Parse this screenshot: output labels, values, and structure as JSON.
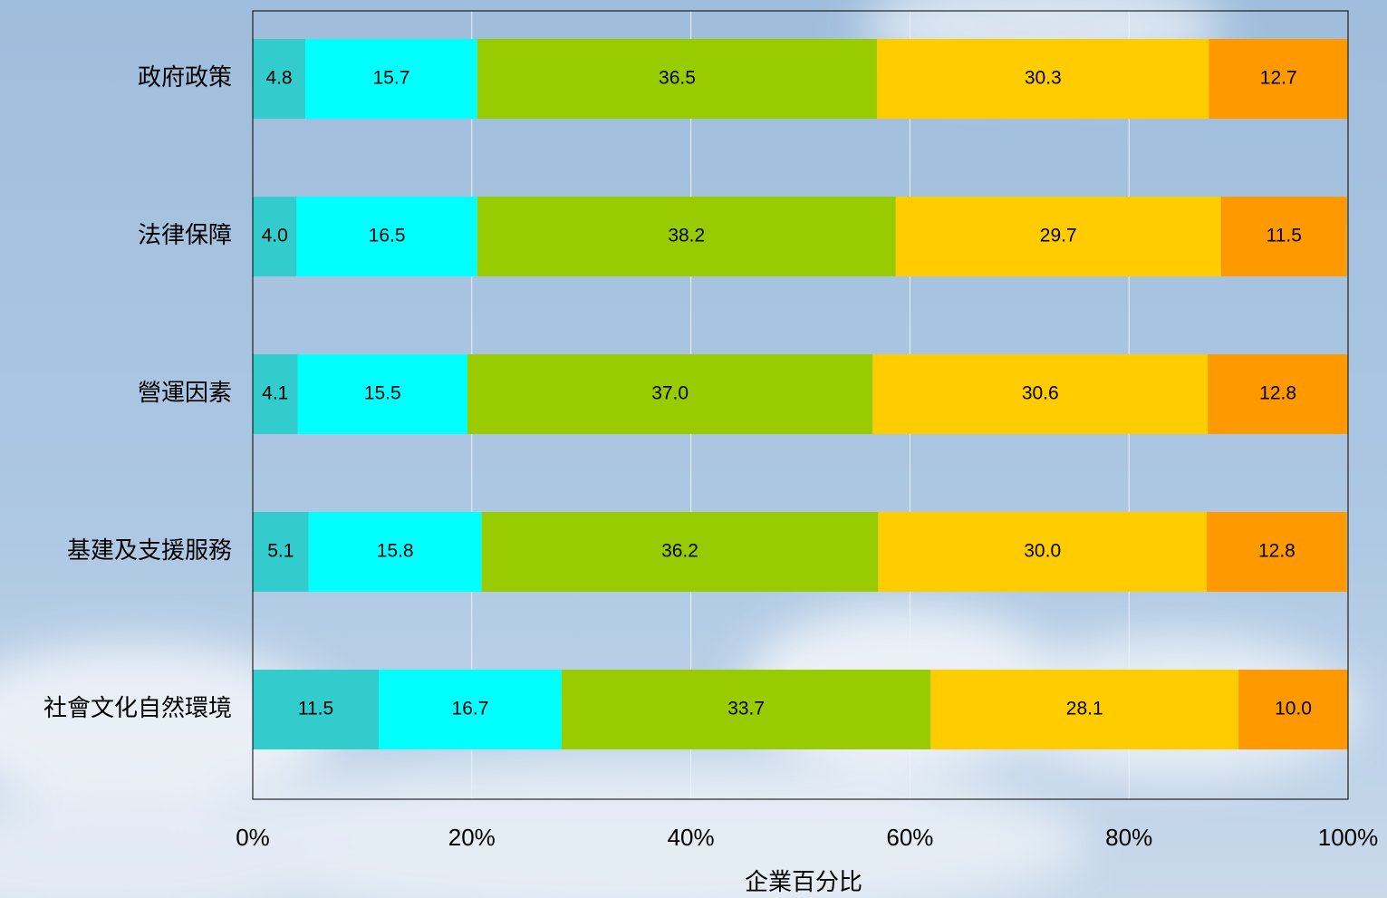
{
  "chart_data": {
    "type": "stacked-barh",
    "xlabel": "企業百分比",
    "categories": [
      "政府政策",
      "法律保障",
      "營運因素",
      "基建及支援服務",
      "社會文化自然環境"
    ],
    "series": [
      {
        "color": "#33cccc",
        "values": [
          4.8,
          4.0,
          4.1,
          5.1,
          11.5
        ],
        "value_labels": [
          "4.8",
          "4.0",
          "4.1",
          "5.1",
          "11.5"
        ]
      },
      {
        "color": "#00ffff",
        "values": [
          15.7,
          16.5,
          15.5,
          15.8,
          16.7
        ],
        "value_labels": [
          "15.7",
          "16.5",
          "15.5",
          "15.8",
          "16.7"
        ]
      },
      {
        "color": "#99cc00",
        "values": [
          36.5,
          38.2,
          37.0,
          36.2,
          33.7
        ],
        "value_labels": [
          "36.5",
          "38.2",
          "37.0",
          "36.2",
          "33.7"
        ]
      },
      {
        "color": "#ffcc00",
        "values": [
          30.3,
          29.7,
          30.6,
          30.0,
          28.1
        ],
        "value_labels": [
          "30.3",
          "29.7",
          "30.6",
          "30.0",
          "28.1"
        ]
      },
      {
        "color": "#ff9900",
        "values": [
          12.7,
          11.5,
          12.8,
          12.8,
          10.0
        ],
        "value_labels": [
          "12.7",
          "11.5",
          "12.8",
          "12.8",
          "10.0"
        ]
      }
    ],
    "xlim": [
      0,
      100
    ],
    "xticks": [
      {
        "value": 0,
        "label": "0%"
      },
      {
        "value": 20,
        "label": "20%"
      },
      {
        "value": 40,
        "label": "40%"
      },
      {
        "value": 60,
        "label": "60%"
      },
      {
        "value": 80,
        "label": "80%"
      },
      {
        "value": 100,
        "label": "100%"
      }
    ],
    "grid": true
  }
}
